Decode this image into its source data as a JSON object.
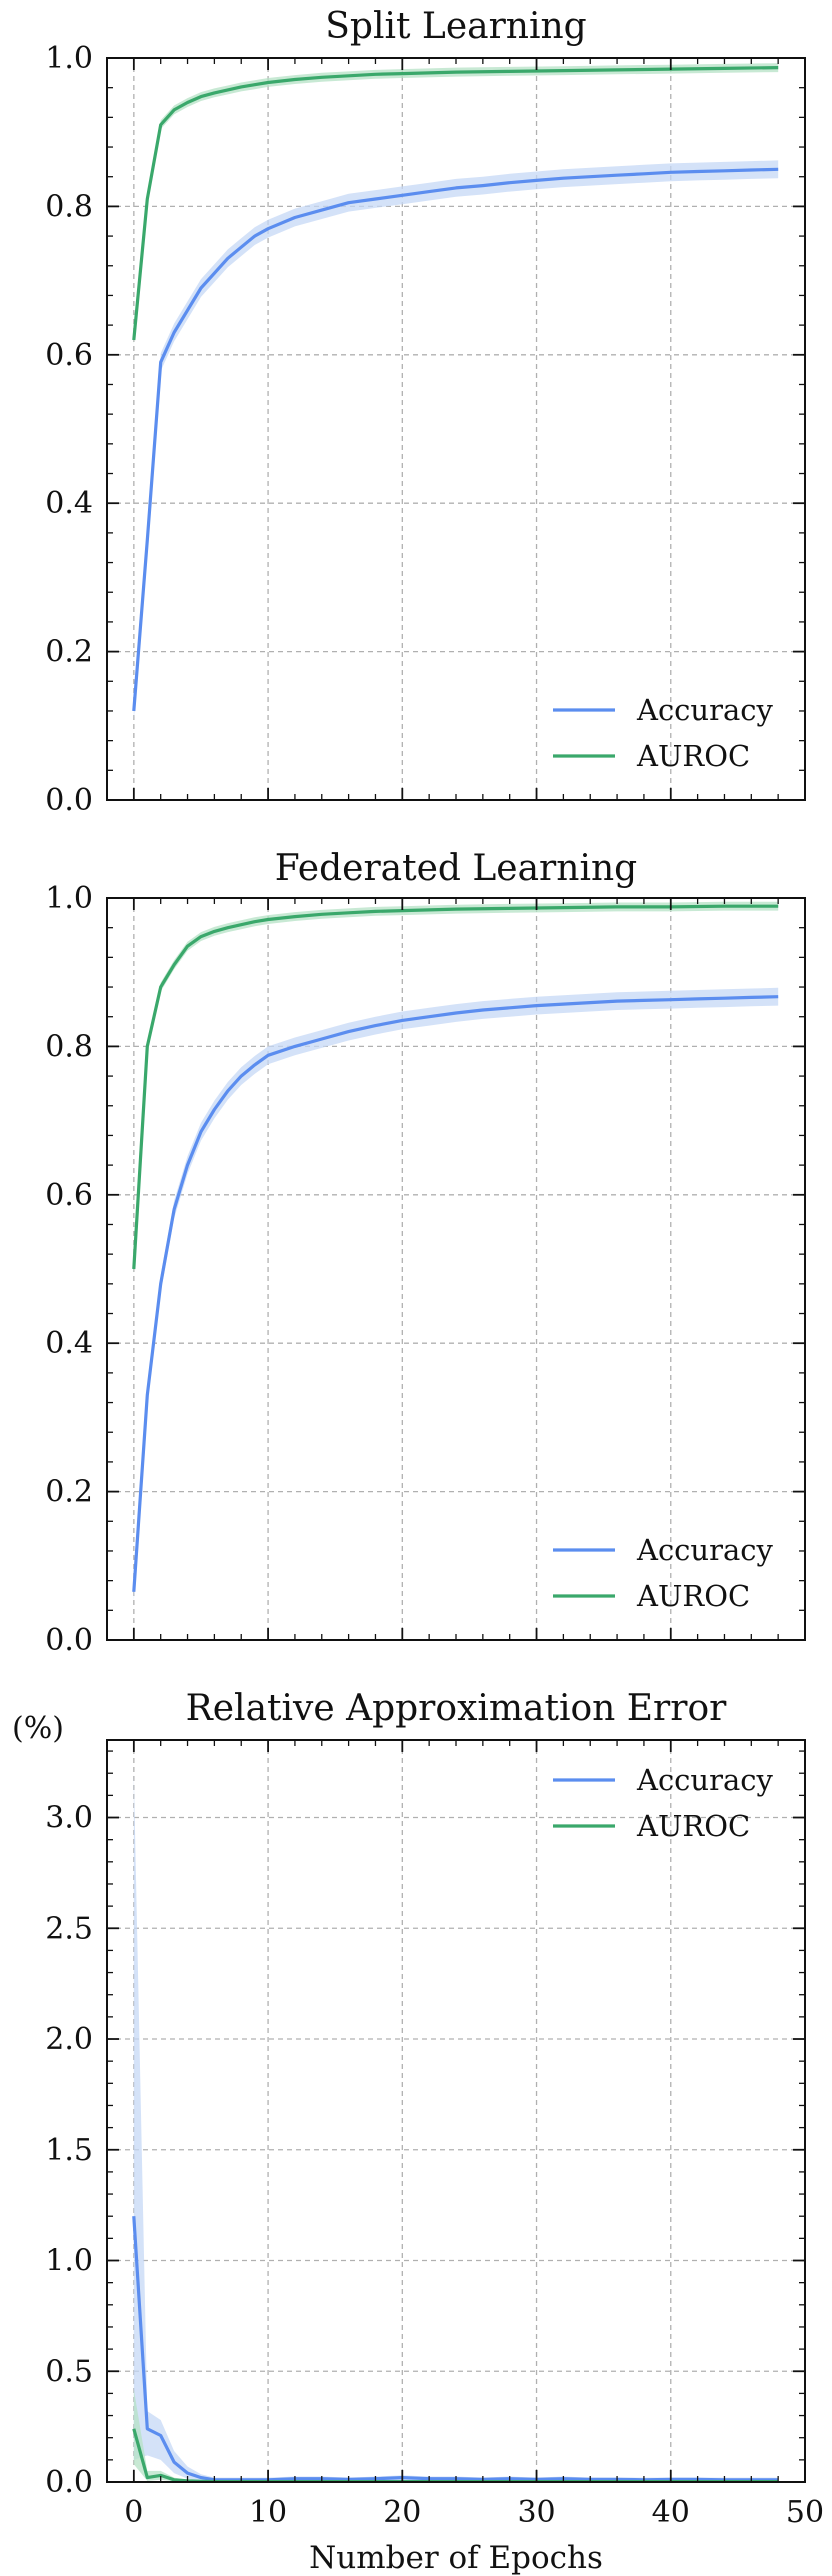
{
  "chart_data": [
    {
      "type": "line",
      "title": "Split Learning",
      "xlabel": "",
      "ylabel": "",
      "xlim": [
        -2,
        50
      ],
      "ylim": [
        0,
        1
      ],
      "xticks": [
        0,
        10,
        20,
        30,
        40,
        50
      ],
      "yticks": [
        "0.0",
        "0.2",
        "0.4",
        "0.6",
        "0.8",
        "1.0"
      ],
      "show_xtick_labels": false,
      "grid": true,
      "legend_position": "lower-right",
      "series": [
        {
          "name": "Accuracy",
          "color": "#5b8def",
          "band_color": "#c5d8f6",
          "x": [
            0,
            1,
            2,
            3,
            4,
            5,
            6,
            7,
            8,
            9,
            10,
            12,
            14,
            16,
            18,
            20,
            22,
            24,
            26,
            28,
            30,
            32,
            34,
            36,
            38,
            40,
            42,
            44,
            46,
            48
          ],
          "values": [
            0.12,
            0.35,
            0.59,
            0.63,
            0.66,
            0.69,
            0.71,
            0.73,
            0.745,
            0.76,
            0.77,
            0.785,
            0.795,
            0.805,
            0.81,
            0.815,
            0.82,
            0.825,
            0.828,
            0.832,
            0.835,
            0.838,
            0.84,
            0.842,
            0.844,
            0.846,
            0.847,
            0.848,
            0.849,
            0.85
          ],
          "band": 0.012
        },
        {
          "name": "AUROC",
          "color": "#3aa86b",
          "band_color": "#b6e1c6",
          "x": [
            0,
            1,
            2,
            3,
            4,
            5,
            6,
            7,
            8,
            9,
            10,
            12,
            14,
            16,
            18,
            20,
            24,
            28,
            32,
            36,
            40,
            44,
            48
          ],
          "values": [
            0.62,
            0.81,
            0.91,
            0.93,
            0.94,
            0.948,
            0.953,
            0.957,
            0.961,
            0.964,
            0.967,
            0.971,
            0.974,
            0.976,
            0.978,
            0.979,
            0.981,
            0.982,
            0.983,
            0.984,
            0.985,
            0.986,
            0.987
          ],
          "band": 0.006
        }
      ]
    },
    {
      "type": "line",
      "title": "Federated Learning",
      "xlabel": "",
      "ylabel": "",
      "xlim": [
        -2,
        50
      ],
      "ylim": [
        0,
        1
      ],
      "xticks": [
        0,
        10,
        20,
        30,
        40,
        50
      ],
      "yticks": [
        "0.0",
        "0.2",
        "0.4",
        "0.6",
        "0.8",
        "1.0"
      ],
      "show_xtick_labels": false,
      "grid": true,
      "legend_position": "lower-right",
      "series": [
        {
          "name": "Accuracy",
          "color": "#5b8def",
          "band_color": "#c5d8f6",
          "x": [
            0,
            1,
            2,
            3,
            4,
            5,
            6,
            7,
            8,
            9,
            10,
            12,
            14,
            16,
            18,
            20,
            22,
            24,
            26,
            28,
            30,
            32,
            34,
            36,
            38,
            40,
            42,
            44,
            46,
            48
          ],
          "values": [
            0.065,
            0.33,
            0.48,
            0.58,
            0.64,
            0.685,
            0.715,
            0.74,
            0.76,
            0.775,
            0.788,
            0.8,
            0.81,
            0.82,
            0.828,
            0.835,
            0.84,
            0.845,
            0.849,
            0.852,
            0.855,
            0.857,
            0.859,
            0.861,
            0.862,
            0.863,
            0.864,
            0.865,
            0.866,
            0.867
          ],
          "band": 0.012
        },
        {
          "name": "AUROC",
          "color": "#3aa86b",
          "band_color": "#b6e1c6",
          "x": [
            0,
            1,
            2,
            3,
            4,
            5,
            6,
            7,
            8,
            9,
            10,
            12,
            14,
            16,
            18,
            20,
            24,
            28,
            32,
            36,
            40,
            44,
            48
          ],
          "values": [
            0.5,
            0.8,
            0.88,
            0.91,
            0.935,
            0.948,
            0.955,
            0.96,
            0.964,
            0.968,
            0.971,
            0.975,
            0.978,
            0.98,
            0.982,
            0.983,
            0.985,
            0.986,
            0.987,
            0.988,
            0.988,
            0.989,
            0.989
          ],
          "band": 0.006
        }
      ]
    },
    {
      "type": "line",
      "title": "Relative Approximation Error",
      "xlabel": "Number of Epochs",
      "ylabel": "(%)",
      "xlim": [
        -2,
        50
      ],
      "ylim": [
        0,
        3.35
      ],
      "xticks": [
        0,
        10,
        20,
        30,
        40,
        50
      ],
      "xtick_labels": [
        "0",
        "10",
        "20",
        "30",
        "40",
        "50"
      ],
      "yticks": [
        "0.0",
        "0.5",
        "1.0",
        "1.5",
        "2.0",
        "2.5",
        "3.0"
      ],
      "show_xtick_labels": true,
      "grid": true,
      "legend_position": "top-right",
      "series": [
        {
          "name": "Accuracy",
          "color": "#5b8def",
          "band_color": "#c5d8f6",
          "x": [
            0,
            1,
            2,
            3,
            4,
            5,
            6,
            7,
            8,
            10,
            12,
            14,
            16,
            18,
            20,
            22,
            24,
            26,
            28,
            30,
            32,
            34,
            36,
            38,
            40,
            42,
            44,
            46,
            48
          ],
          "values": [
            1.2,
            0.24,
            0.21,
            0.09,
            0.04,
            0.02,
            0.01,
            0.01,
            0.01,
            0.01,
            0.015,
            0.015,
            0.012,
            0.015,
            0.02,
            0.015,
            0.015,
            0.012,
            0.015,
            0.012,
            0.015,
            0.012,
            0.012,
            0.01,
            0.012,
            0.012,
            0.01,
            0.01,
            0.01
          ],
          "band_upper": [
            3.2,
            0.32,
            0.28,
            0.14,
            0.07,
            0.035,
            0.02,
            0.02,
            0.02,
            0.02,
            0.025,
            0.025,
            0.02,
            0.025,
            0.03,
            0.025,
            0.025,
            0.02,
            0.025,
            0.02,
            0.025,
            0.02,
            0.02,
            0.02,
            0.02,
            0.02,
            0.02,
            0.02,
            0.02
          ],
          "band_lower": [
            0.1,
            0.12,
            0.1,
            0.04,
            0.015,
            0.005,
            0,
            0,
            0,
            0,
            0.005,
            0.005,
            0.004,
            0.005,
            0.01,
            0.005,
            0.005,
            0.004,
            0.005,
            0.004,
            0.005,
            0.004,
            0.004,
            0.003,
            0.004,
            0.004,
            0.003,
            0.003,
            0.003
          ]
        },
        {
          "name": "AUROC",
          "color": "#3aa86b",
          "band_color": "#b6e1c6",
          "x": [
            0,
            1,
            2,
            3,
            4,
            5,
            6,
            8,
            10,
            14,
            20,
            30,
            40,
            48
          ],
          "values": [
            0.24,
            0.02,
            0.03,
            0.01,
            0.005,
            0.003,
            0.002,
            0.002,
            0.002,
            0.002,
            0.002,
            0.002,
            0.002,
            0.002
          ],
          "band_upper": [
            0.42,
            0.05,
            0.05,
            0.02,
            0.01,
            0.006,
            0.004,
            0.004,
            0.004,
            0.004,
            0.004,
            0.004,
            0.004,
            0.004
          ],
          "band_lower": [
            0.08,
            0.005,
            0.01,
            0.003,
            0.001,
            0.001,
            0,
            0,
            0,
            0,
            0,
            0,
            0,
            0
          ]
        }
      ]
    }
  ]
}
